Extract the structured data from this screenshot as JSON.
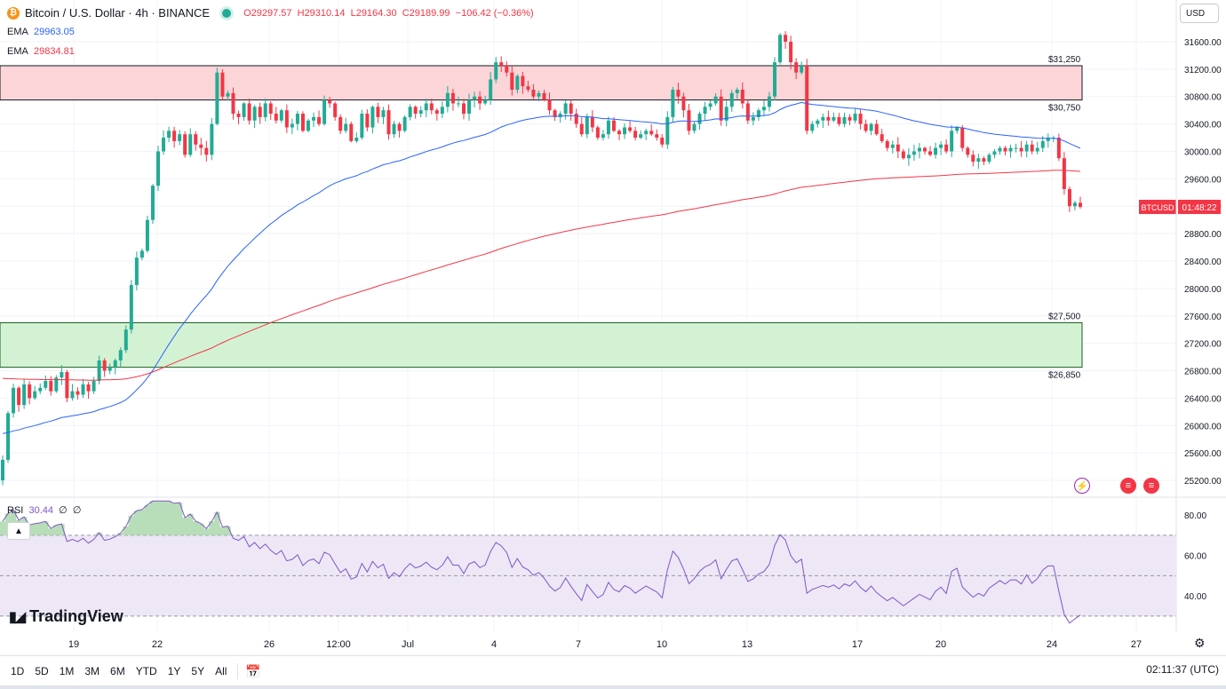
{
  "header": {
    "symbol_title": "Bitcoin / U.S. Dollar · 4h · BINANCE",
    "open": "O29297.57",
    "high": "H29310.14",
    "low": "L29164.30",
    "close": "C29189.99",
    "change": "−106.42 (−0.36%)"
  },
  "indicators": {
    "ema1_label": "EMA",
    "ema1_value": "29963.05",
    "ema2_label": "EMA",
    "ema2_value": "29834.81",
    "rsi_label": "RSI",
    "rsi_value": "30.44",
    "rsi_extra1": "∅",
    "rsi_extra2": "∅"
  },
  "currency_button": "USD",
  "collapse_icon": "chevron-up-icon",
  "logo_text": "TradingView",
  "price_tag": {
    "symbol": "BTCUSD",
    "countdown": "01:48:22"
  },
  "timeframes": [
    "1D",
    "5D",
    "1M",
    "3M",
    "6M",
    "YTD",
    "1Y",
    "5Y",
    "All"
  ],
  "clock": "02:11:37 (UTC)",
  "colors": {
    "up": "#22ab94",
    "down": "#f23645",
    "ema_fast": "#2962ff",
    "ema_slow": "#f23645",
    "resistance_zone": "#fbd5d8",
    "support_zone": "#d3f2d3",
    "rsi_band": "#ede7f6",
    "rsi_line": "#7e57c2"
  },
  "chart_data": {
    "type": "candlestick",
    "title": "Bitcoin / U.S. Dollar · 4h · BINANCE",
    "y_ticks": [
      25200,
      25600,
      26000,
      26400,
      26800,
      27200,
      27600,
      28000,
      28400,
      28800,
      29200,
      29600,
      30000,
      30400,
      30800,
      31200,
      31600
    ],
    "y_tick_labels": [
      "25200.00",
      "25600.00",
      "26000.00",
      "26400.00",
      "26800.00",
      "27200.00",
      "27600.00",
      "28000.00",
      "28400.00",
      "28800.00",
      "29200.00",
      "29600.00",
      "30000.00",
      "30400.00",
      "30800.00",
      "31200.00",
      "31600.00"
    ],
    "x_tick_labels": [
      "19",
      "22",
      "26",
      "12:00",
      "Jul",
      "4",
      "7",
      "10",
      "13",
      "17",
      "20",
      "24",
      "27"
    ],
    "ylim": [
      24980,
      31820
    ],
    "zones": [
      {
        "name": "resistance",
        "top": 31250,
        "bottom": 30750,
        "top_label": "$31,250",
        "bottom_label": "$30,750"
      },
      {
        "name": "support",
        "top": 27500,
        "bottom": 26850,
        "top_label": "$27,500",
        "bottom_label": "$26,850"
      }
    ],
    "last_price": 29189.99,
    "closes": [
      25500,
      26180,
      26550,
      26300,
      26600,
      26400,
      26500,
      26550,
      26650,
      26500,
      26700,
      26780,
      26400,
      26500,
      26450,
      26600,
      26500,
      26650,
      26950,
      26800,
      26850,
      26950,
      27100,
      27400,
      28050,
      28450,
      28550,
      29000,
      29500,
      30000,
      30200,
      30300,
      30150,
      30250,
      29950,
      30250,
      30100,
      30050,
      29950,
      30400,
      31150,
      30800,
      30850,
      30550,
      30500,
      30700,
      30450,
      30650,
      30500,
      30700,
      30550,
      30450,
      30600,
      30350,
      30400,
      30550,
      30300,
      30450,
      30500,
      30400,
      30750,
      30700,
      30500,
      30300,
      30400,
      30150,
      30200,
      30550,
      30350,
      30650,
      30500,
      30600,
      30250,
      30400,
      30300,
      30500,
      30650,
      30550,
      30600,
      30700,
      30600,
      30550,
      30650,
      30850,
      30700,
      30700,
      30550,
      30750,
      30800,
      30700,
      30750,
      31050,
      31300,
      31250,
      31150,
      30900,
      31100,
      30950,
      30900,
      30800,
      30850,
      30750,
      30600,
      30500,
      30550,
      30700,
      30550,
      30400,
      30250,
      30500,
      30350,
      30200,
      30250,
      30450,
      30300,
      30250,
      30350,
      30300,
      30200,
      30250,
      30300,
      30250,
      30200,
      30100,
      30500,
      30900,
      30800,
      30600,
      30300,
      30400,
      30550,
      30650,
      30700,
      30800,
      30450,
      30650,
      30850,
      30900,
      30700,
      30450,
      30500,
      30600,
      30650,
      30800,
      31300,
      31700,
      31600,
      31300,
      31150,
      31250,
      30300,
      30400,
      30450,
      30500,
      30450,
      30500,
      30400,
      30500,
      30450,
      30550,
      30400,
      30300,
      30400,
      30250,
      30150,
      30050,
      30100,
      30000,
      29900,
      29950,
      30000,
      30050,
      30000,
      29950,
      30050,
      30100,
      30000,
      30300,
      30350,
      30050,
      29950,
      29850,
      29900,
      29850,
      29950,
      30000,
      30050,
      30000,
      30050,
      30050,
      30000,
      30100,
      30000,
      30050,
      30150,
      30200,
      30200,
      29900,
      29450,
      29200,
      29250,
      29190
    ],
    "ema_fast_label_value": 29963.05,
    "ema_slow_label_value": 29834.81,
    "rsi": {
      "y_ticks": [
        40,
        60,
        80
      ],
      "y_tick_labels": [
        "40.00",
        "60.00",
        "80.00"
      ],
      "band": [
        30,
        70
      ],
      "value": 30.44
    }
  }
}
